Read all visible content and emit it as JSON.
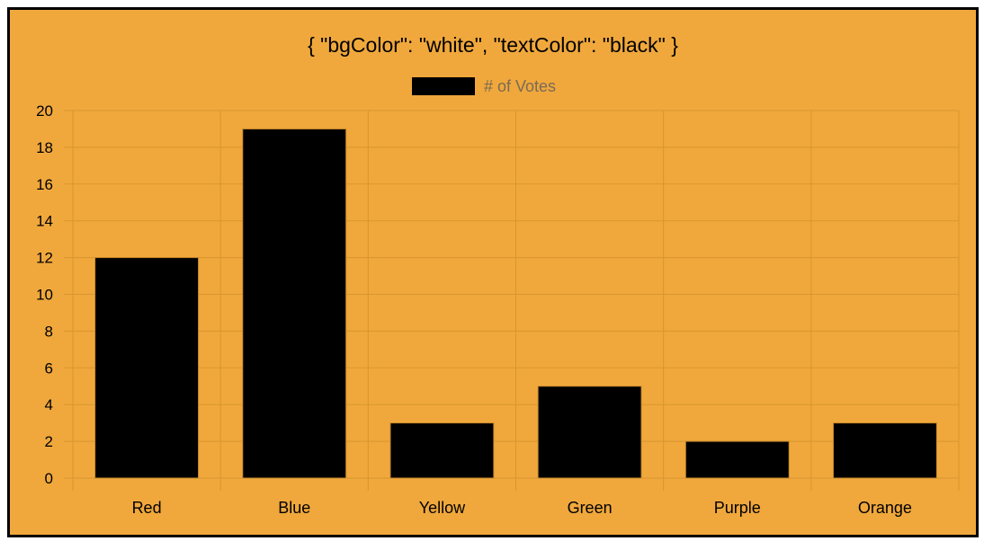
{
  "chart_data": {
    "type": "bar",
    "title": "{ \"bgColor\": \"white\", \"textColor\": \"black\" }",
    "categories": [
      "Red",
      "Blue",
      "Yellow",
      "Green",
      "Purple",
      "Orange"
    ],
    "series": [
      {
        "name": "# of Votes",
        "values": [
          12,
          19,
          3,
          5,
          2,
          3
        ]
      }
    ],
    "ylim": [
      0,
      20
    ],
    "yticks": [
      0,
      2,
      4,
      6,
      8,
      10,
      12,
      14,
      16,
      18,
      20
    ],
    "grid": true,
    "legend_position": "top",
    "colors": {
      "background": "#f0a83c",
      "bar": "#000000",
      "grid": "#d9952f",
      "legend_text": "#7a6a55",
      "border": "#000000"
    }
  }
}
